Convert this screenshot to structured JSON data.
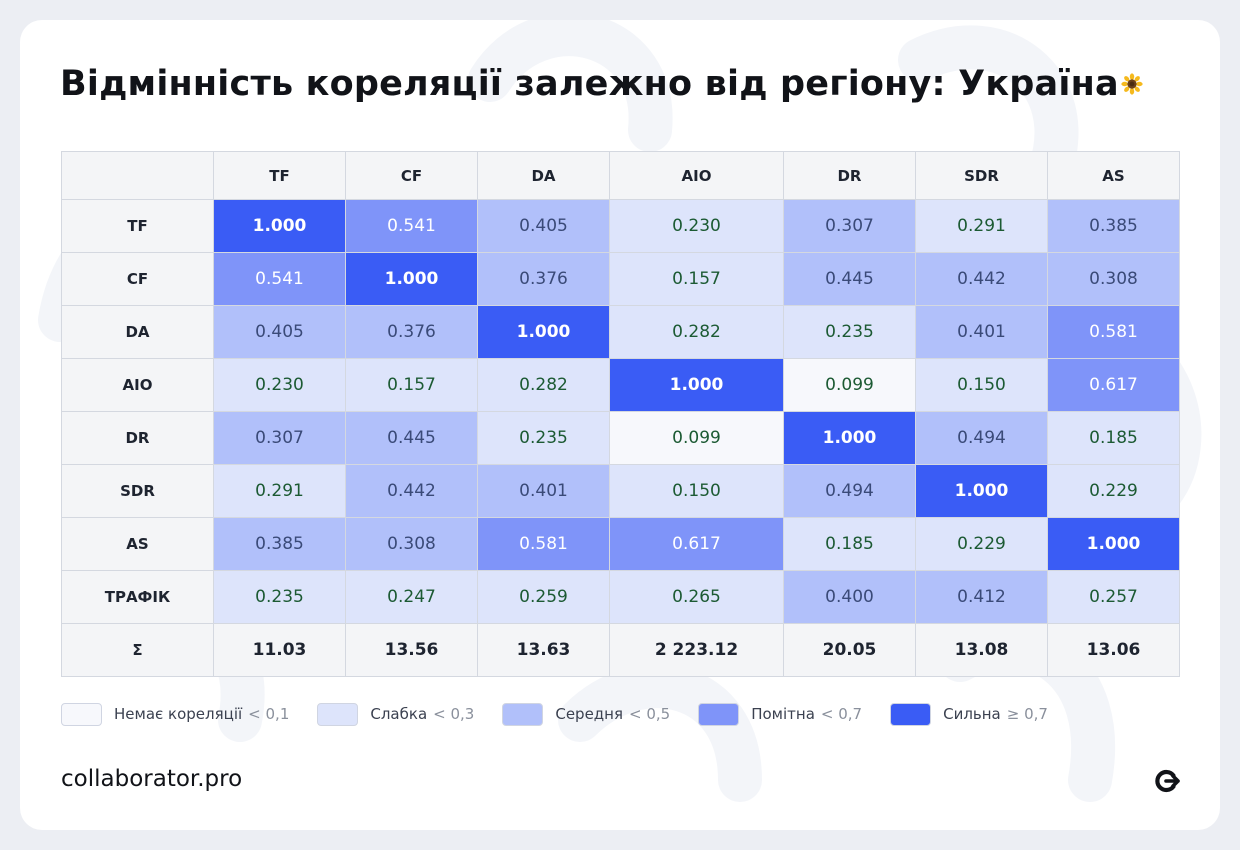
{
  "title": {
    "regular": "Відмінність кореляції залежно від регіону: ",
    "bold": "Україна"
  },
  "colors": {
    "none": "#f7f8fc",
    "weak": "#dde4fb",
    "medium": "#b1c0fa",
    "notable": "#7f94f9",
    "strong": "#3a5cf5",
    "text_green": "#1c5a33",
    "text_slate": "#3a4a78"
  },
  "chart_data": {
    "type": "heatmap",
    "title": "Відмінність кореляції залежно від регіону: Україна",
    "columns": [
      "TF",
      "CF",
      "DA",
      "AIO",
      "DR",
      "SDR",
      "AS"
    ],
    "rows": [
      {
        "label": "TF",
        "values": [
          "1.000",
          "0.541",
          "0.405",
          "0.230",
          "0.307",
          "0.291",
          "0.385"
        ]
      },
      {
        "label": "CF",
        "values": [
          "0.541",
          "1.000",
          "0.376",
          "0.157",
          "0.445",
          "0.442",
          "0.308"
        ]
      },
      {
        "label": "DA",
        "values": [
          "0.405",
          "0.376",
          "1.000",
          "0.282",
          "0.235",
          "0.401",
          "0.581"
        ]
      },
      {
        "label": "AIO",
        "values": [
          "0.230",
          "0.157",
          "0.282",
          "1.000",
          "0.099",
          "0.150",
          "0.617"
        ]
      },
      {
        "label": "DR",
        "values": [
          "0.307",
          "0.445",
          "0.235",
          "0.099",
          "1.000",
          "0.494",
          "0.185"
        ]
      },
      {
        "label": "SDR",
        "values": [
          "0.291",
          "0.442",
          "0.401",
          "0.150",
          "0.494",
          "1.000",
          "0.229"
        ]
      },
      {
        "label": "AS",
        "values": [
          "0.385",
          "0.308",
          "0.581",
          "0.617",
          "0.185",
          "0.229",
          "1.000"
        ]
      },
      {
        "label": "ТРАФІК",
        "values": [
          "0.235",
          "0.247",
          "0.259",
          "0.265",
          "0.400",
          "0.412",
          "0.257"
        ]
      }
    ],
    "sum_row": {
      "label": "Σ",
      "values": [
        "11.03",
        "13.56",
        "13.63",
        "2 223.12",
        "20.05",
        "13.08",
        "13.06"
      ]
    }
  },
  "legend": [
    {
      "label": "Немає кореляції",
      "cond": "< 0,1",
      "color": "#f7f8fc"
    },
    {
      "label": "Слабка",
      "cond": "< 0,3",
      "color": "#dde4fb"
    },
    {
      "label": "Середня",
      "cond": "< 0,5",
      "color": "#b1c0fa"
    },
    {
      "label": "Помітна",
      "cond": "< 0,7",
      "color": "#7f94f9"
    },
    {
      "label": "Сильна",
      "cond": "≥ 0,7",
      "color": "#3a5cf5"
    }
  ],
  "footer": {
    "brand": "collaborator.pro",
    "logo_icon": "collaborator-logo-icon"
  }
}
